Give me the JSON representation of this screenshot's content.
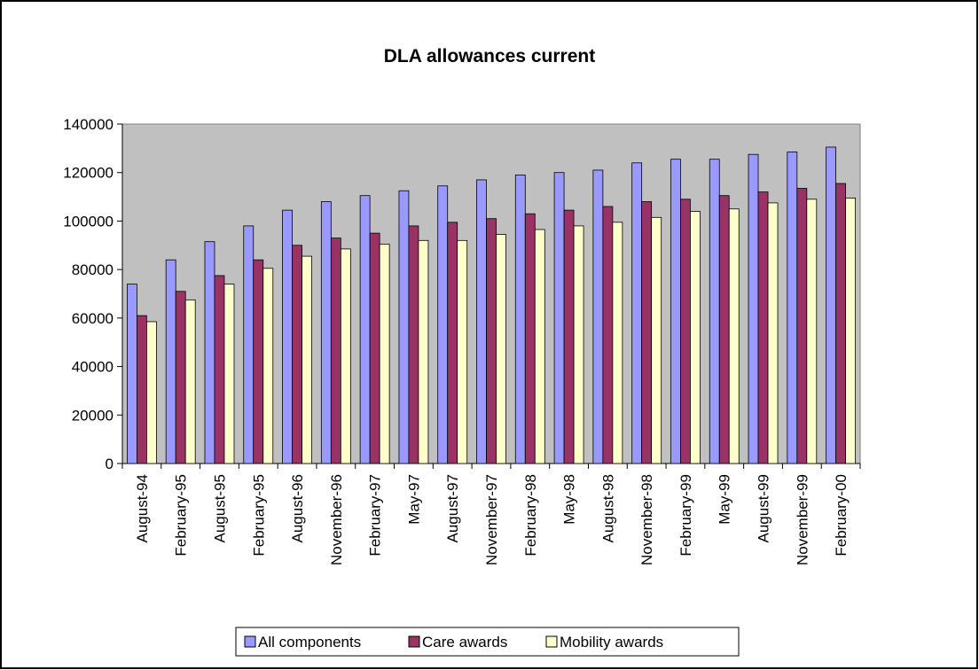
{
  "chart_data": {
    "type": "bar",
    "title": "DLA allowances current",
    "categories": [
      "August-94",
      "February-95",
      "August-95",
      "February-95",
      "August-96",
      "November-96",
      "February-97",
      "May-97",
      "August-97",
      "November-97",
      "February-98",
      "May-98",
      "August-98",
      "November-98",
      "February-99",
      "May-99",
      "August-99",
      "November-99",
      "February-00"
    ],
    "series": [
      {
        "name": "All components",
        "color": "#9999ff",
        "values": [
          74000,
          84000,
          91500,
          98000,
          104500,
          108000,
          110500,
          112500,
          114500,
          117000,
          119000,
          120000,
          121000,
          124000,
          125500,
          125500,
          127500,
          128500,
          130500
        ]
      },
      {
        "name": "Care awards",
        "color": "#993366",
        "values": [
          61000,
          71000,
          77500,
          84000,
          90000,
          93000,
          95000,
          98000,
          99500,
          101000,
          103000,
          104500,
          106000,
          108000,
          109000,
          110500,
          112000,
          113500,
          115500
        ]
      },
      {
        "name": "Mobility awards",
        "color": "#ffffcc",
        "values": [
          58500,
          67500,
          74000,
          80500,
          85500,
          88500,
          90500,
          92000,
          92000,
          94500,
          96500,
          98000,
          99500,
          101500,
          104000,
          105000,
          107500,
          109000,
          109500
        ]
      }
    ],
    "ylim": [
      0,
      140000
    ],
    "yticks": [
      0,
      20000,
      40000,
      60000,
      80000,
      100000,
      120000,
      140000
    ],
    "legend": "bottom"
  }
}
